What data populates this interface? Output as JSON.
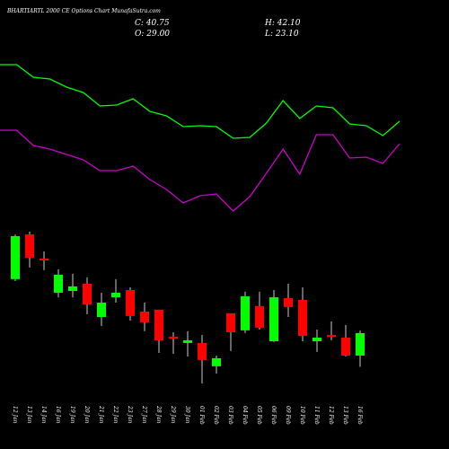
{
  "chart_data": {
    "type": "candlestick",
    "title": "BHARTIARTL 2000 CE Options Chart MunafaSutra.com",
    "ohlc_labels": [
      "C: 40.75",
      "H: 42.10",
      "O: 29.00",
      "L: 23.10"
    ],
    "categories": [
      "12 Jan",
      "13 Jan",
      "14 Jan",
      "16 Jan",
      "19 Jan",
      "20 Jan",
      "21 Jan",
      "22 Jan",
      "23 Jan",
      "27 Jan",
      "28 Jan",
      "29 Jan",
      "30 Jan",
      "01 Feb",
      "02 Feb",
      "03 Feb",
      "04 Feb",
      "05 Feb",
      "06 Feb",
      "09 Feb",
      "10 Feb",
      "11 Feb",
      "12 Feb",
      "13 Feb",
      "16 Feb"
    ],
    "open": [
      69.0,
      92.4,
      79.8,
      61.9,
      62.8,
      66.6,
      49.2,
      59.5,
      63.3,
      52.0,
      53.0,
      38.9,
      35.6,
      35.6,
      23.4,
      51.1,
      42.2,
      54.9,
      36.5,
      59.1,
      58.1,
      36.5,
      39.8,
      38.4,
      29.0
    ],
    "high": [
      92.4,
      93.9,
      83.5,
      74.1,
      71.8,
      69.9,
      61.9,
      69.0,
      64.7,
      56.7,
      53.0,
      41.2,
      41.7,
      39.8,
      29.0,
      51.1,
      62.4,
      62.4,
      63.3,
      66.6,
      64.7,
      42.6,
      46.9,
      45.0,
      42.1
    ],
    "low": [
      68.0,
      75.1,
      73.7,
      59.5,
      59.5,
      50.6,
      44.5,
      56.7,
      47.3,
      41.7,
      30.4,
      29.9,
      28.5,
      14.4,
      19.6,
      31.4,
      40.8,
      42.6,
      36.1,
      49.2,
      36.5,
      30.9,
      37.0,
      28.5,
      23.1
    ],
    "close": [
      91.5,
      80.2,
      78.8,
      71.3,
      65.2,
      55.8,
      56.7,
      61.9,
      49.7,
      46.4,
      37.0,
      37.9,
      37.0,
      26.7,
      27.6,
      41.2,
      60.0,
      43.6,
      59.5,
      54.4,
      39.3,
      38.4,
      38.9,
      29.0,
      40.75
    ],
    "up_color": "#00ff00",
    "down_color": "#ff0000",
    "ylim": [
      8.3,
      97.6
    ],
    "indicator_ylim": [
      0,
      100
    ],
    "indicators": [
      {
        "color": "#00ff00",
        "values": [
          89,
          89,
          82,
          81,
          76.5,
          73.5,
          66,
          66.5,
          70,
          63,
          60.5,
          54.5,
          55,
          54.5,
          48,
          48.5,
          56.5,
          69,
          59,
          66,
          65,
          56,
          55,
          49.5,
          57.5
        ]
      },
      {
        "color": "#cc00cc",
        "values": [
          52.5,
          52.5,
          44,
          42,
          39,
          36,
          30,
          30,
          32.5,
          25,
          19.5,
          12,
          16,
          17,
          7.5,
          15.5,
          28.5,
          42,
          28,
          50,
          50,
          37,
          37.5,
          34,
          45
        ]
      }
    ]
  }
}
